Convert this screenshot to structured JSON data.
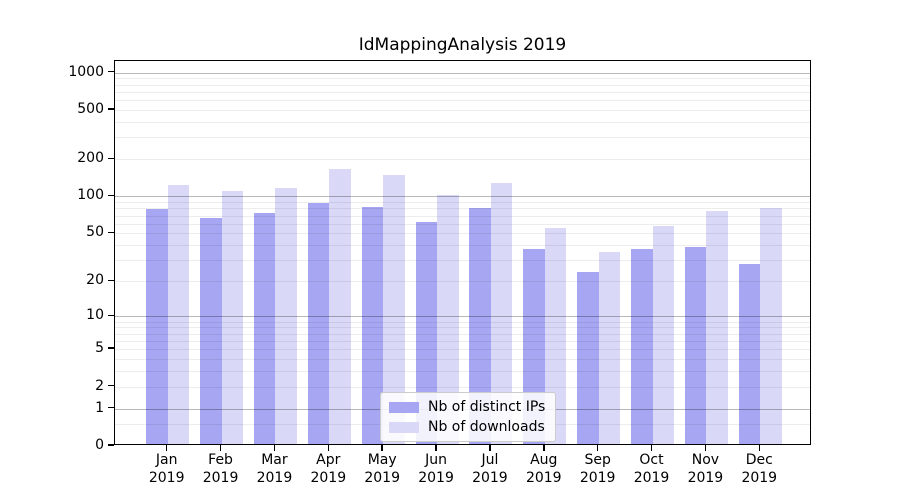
{
  "title": "IdMappingAnalysis 2019",
  "legend": {
    "items": [
      {
        "label": "Nb of distinct IPs",
        "color": "#a6a6f2"
      },
      {
        "label": "Nb of downloads",
        "color": "#d9d9f7"
      }
    ]
  },
  "chart_data": {
    "type": "bar",
    "title": "IdMappingAnalysis 2019",
    "categories": [
      "Jan",
      "Feb",
      "Mar",
      "Apr",
      "May",
      "Jun",
      "Jul",
      "Aug",
      "Sep",
      "Oct",
      "Nov",
      "Dec"
    ],
    "year": "2019",
    "series": [
      {
        "name": "Nb of distinct IPs",
        "color": "#a6a6f2",
        "values": [
          76,
          64,
          71,
          86,
          79,
          60,
          78,
          36,
          23,
          36,
          37,
          27
        ]
      },
      {
        "name": "Nb of downloads",
        "color": "#d9d9f7",
        "values": [
          120,
          107,
          112,
          160,
          144,
          100,
          123,
          53,
          34,
          55,
          74,
          78
        ]
      }
    ],
    "yscale": "log1p",
    "ytick_labels": [
      "1000",
      "500",
      "200",
      "100",
      "50",
      "20",
      "10",
      "5",
      "2",
      "1",
      "0"
    ],
    "ytick_values": [
      1000,
      500,
      200,
      100,
      50,
      20,
      10,
      5,
      2,
      1,
      0
    ],
    "ylim": [
      0,
      1243
    ],
    "grid": true,
    "legend_position": "bottom-center",
    "xlabel": "",
    "ylabel": ""
  }
}
